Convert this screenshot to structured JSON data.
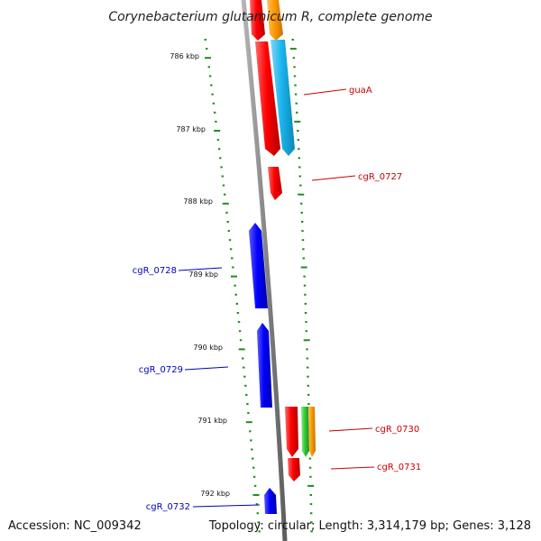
{
  "title": "Corynebacterium glutamicum R, complete genome",
  "accession": "Accession: NC_009342",
  "topology": "Topology: circular; Length: 3,314,179 bp; Genes: 3,128",
  "colors": {
    "backbone": "#8c8c8c",
    "tick": "#1e8c1e",
    "forward_label": "#cc0000",
    "reverse_label": "#0000bb",
    "red": "#ff0000",
    "blue": "#0000ff",
    "cyan": "#1ab5ee",
    "orange": "#ff9900",
    "green": "#33cc33"
  },
  "scale_labels": [
    {
      "label": "786 kbp",
      "kbp": 786
    },
    {
      "label": "787 kbp",
      "kbp": 787
    },
    {
      "label": "788 kbp",
      "kbp": 788
    },
    {
      "label": "789 kbp",
      "kbp": 789
    },
    {
      "label": "790 kbp",
      "kbp": 790
    },
    {
      "label": "791 kbp",
      "kbp": 791
    },
    {
      "label": "792 kbp",
      "kbp": 792
    }
  ],
  "gene_labels": [
    {
      "label": "guaA",
      "strand": "forward"
    },
    {
      "label": "cgR_0727",
      "strand": "forward"
    },
    {
      "label": "cgR_0728",
      "strand": "reverse"
    },
    {
      "label": "cgR_0729",
      "strand": "reverse"
    },
    {
      "label": "cgR_0730",
      "strand": "forward"
    },
    {
      "label": "cgR_0731",
      "strand": "forward"
    },
    {
      "label": "cgR_0732",
      "strand": "reverse"
    }
  ]
}
